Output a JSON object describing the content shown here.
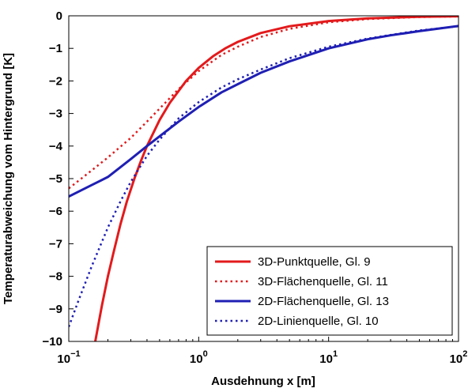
{
  "chart_data": {
    "type": "line",
    "xlabel": "Ausdehnung x [m]",
    "ylabel": "Temperaturabweichung vom Hintergrund [K]",
    "xscale": "log",
    "xlim": [
      0.1,
      100
    ],
    "ylim": [
      -10,
      0
    ],
    "x_ticks": [
      {
        "value": 0.1,
        "base": "10",
        "exp": "−1"
      },
      {
        "value": 1,
        "base": "10",
        "exp": "0"
      },
      {
        "value": 10,
        "base": "10",
        "exp": "1"
      },
      {
        "value": 100,
        "base": "10",
        "exp": "2"
      }
    ],
    "y_ticks": [
      {
        "value": 0,
        "label": "0"
      },
      {
        "value": -1,
        "label": "−1"
      },
      {
        "value": -2,
        "label": "−2"
      },
      {
        "value": -3,
        "label": "−3"
      },
      {
        "value": -4,
        "label": "−4"
      },
      {
        "value": -5,
        "label": "−5"
      },
      {
        "value": -6,
        "label": "−6"
      },
      {
        "value": -7,
        "label": "−7"
      },
      {
        "value": -8,
        "label": "−8"
      },
      {
        "value": -9,
        "label": "−9"
      },
      {
        "value": -10,
        "label": "−10"
      }
    ],
    "legend_position": "bottom-right",
    "series": [
      {
        "name": "3D-Punktquelle, Gl. 9",
        "color": "#e31a1c",
        "style": "solid",
        "x": [
          0.16,
          0.18,
          0.2,
          0.22,
          0.25,
          0.28,
          0.32,
          0.36,
          0.4,
          0.5,
          0.6,
          0.8,
          1.0,
          1.3,
          1.6,
          2,
          3,
          5,
          10,
          20,
          50,
          100
        ],
        "y": [
          -10.0,
          -8.9,
          -8.0,
          -7.3,
          -6.4,
          -5.7,
          -5.0,
          -4.45,
          -4.0,
          -3.2,
          -2.67,
          -2.0,
          -1.6,
          -1.23,
          -1.0,
          -0.8,
          -0.53,
          -0.32,
          -0.16,
          -0.08,
          -0.03,
          -0.015
        ]
      },
      {
        "name": "3D-Flächenquelle, Gl. 11",
        "color": "#e31a1c",
        "style": "dotted",
        "x": [
          0.1,
          0.15,
          0.2,
          0.3,
          0.4,
          0.5,
          0.7,
          1.0,
          1.5,
          2,
          3,
          5,
          10,
          20,
          50,
          100
        ],
        "y": [
          -5.3,
          -4.75,
          -4.35,
          -3.75,
          -3.25,
          -2.85,
          -2.25,
          -1.7,
          -1.2,
          -0.95,
          -0.65,
          -0.4,
          -0.2,
          -0.1,
          -0.04,
          -0.02
        ]
      },
      {
        "name": "2D-Flächenquelle, Gl. 13",
        "color": "#1f1fb4",
        "style": "solid",
        "x": [
          0.1,
          0.15,
          0.2,
          0.3,
          0.4,
          0.5,
          0.7,
          1.0,
          1.5,
          2,
          3,
          5,
          10,
          20,
          30,
          50,
          100
        ],
        "y": [
          -5.55,
          -5.2,
          -4.95,
          -4.4,
          -4.0,
          -3.7,
          -3.25,
          -2.8,
          -2.35,
          -2.1,
          -1.75,
          -1.4,
          -1.0,
          -0.72,
          -0.6,
          -0.47,
          -0.31
        ]
      },
      {
        "name": "2D-Linienquelle, Gl. 10",
        "color": "#1f1fb4",
        "style": "dotted",
        "x": [
          0.1,
          0.12,
          0.15,
          0.2,
          0.25,
          0.3,
          0.4,
          0.5,
          0.7,
          1.0,
          1.5,
          2,
          3,
          5,
          10,
          20,
          50,
          100
        ],
        "y": [
          -9.55,
          -8.7,
          -7.7,
          -6.5,
          -5.7,
          -5.1,
          -4.3,
          -3.8,
          -3.15,
          -2.65,
          -2.2,
          -1.95,
          -1.65,
          -1.3,
          -0.95,
          -0.7,
          -0.45,
          -0.32
        ]
      }
    ]
  }
}
